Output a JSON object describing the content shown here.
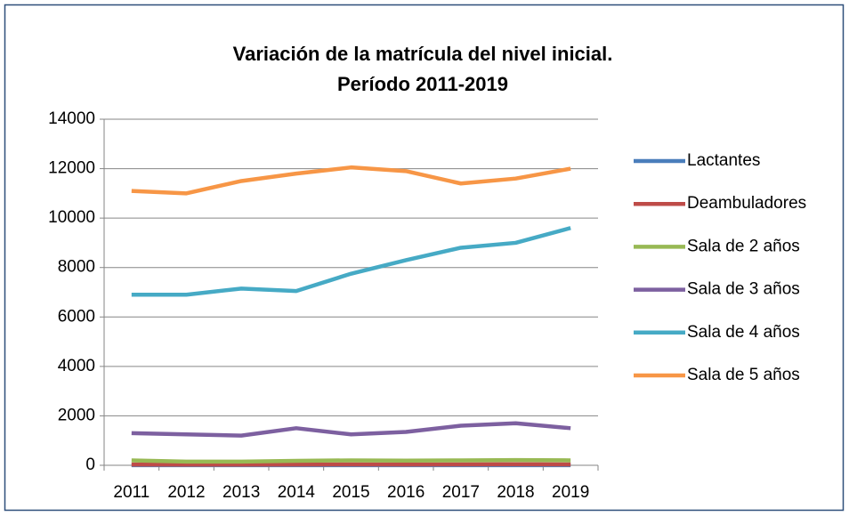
{
  "chart_data": {
    "type": "line",
    "title": [
      "Variación de la matrícula del nivel inicial.",
      "Período 2011-2019"
    ],
    "categories": [
      "2011",
      "2012",
      "2013",
      "2014",
      "2015",
      "2016",
      "2017",
      "2018",
      "2019"
    ],
    "series": [
      {
        "name": "Lactantes",
        "color": "#4a7ebb",
        "values": [
          5,
          5,
          5,
          5,
          5,
          5,
          5,
          5,
          5
        ]
      },
      {
        "name": "Deambuladores",
        "color": "#be4b48",
        "values": [
          30,
          25,
          25,
          30,
          35,
          30,
          35,
          40,
          35
        ]
      },
      {
        "name": "Sala de 2 años",
        "color": "#98b954",
        "values": [
          200,
          150,
          150,
          180,
          200,
          190,
          200,
          210,
          200
        ]
      },
      {
        "name": "Sala de 3 años",
        "color": "#7d60a0",
        "values": [
          1300,
          1250,
          1200,
          1500,
          1250,
          1350,
          1600,
          1700,
          1500
        ]
      },
      {
        "name": "Sala de 4 años",
        "color": "#46aac5",
        "values": [
          6900,
          6900,
          7150,
          7050,
          7750,
          8300,
          8800,
          9000,
          9600
        ]
      },
      {
        "name": "Sala de 5 años",
        "color": "#f79646",
        "values": [
          11100,
          11000,
          11500,
          11800,
          12050,
          11900,
          11400,
          11600,
          12000
        ]
      }
    ],
    "ylim": [
      0,
      14000
    ],
    "yticks": [
      0,
      2000,
      4000,
      6000,
      8000,
      10000,
      12000,
      14000
    ],
    "grid": true,
    "legend": "right"
  }
}
